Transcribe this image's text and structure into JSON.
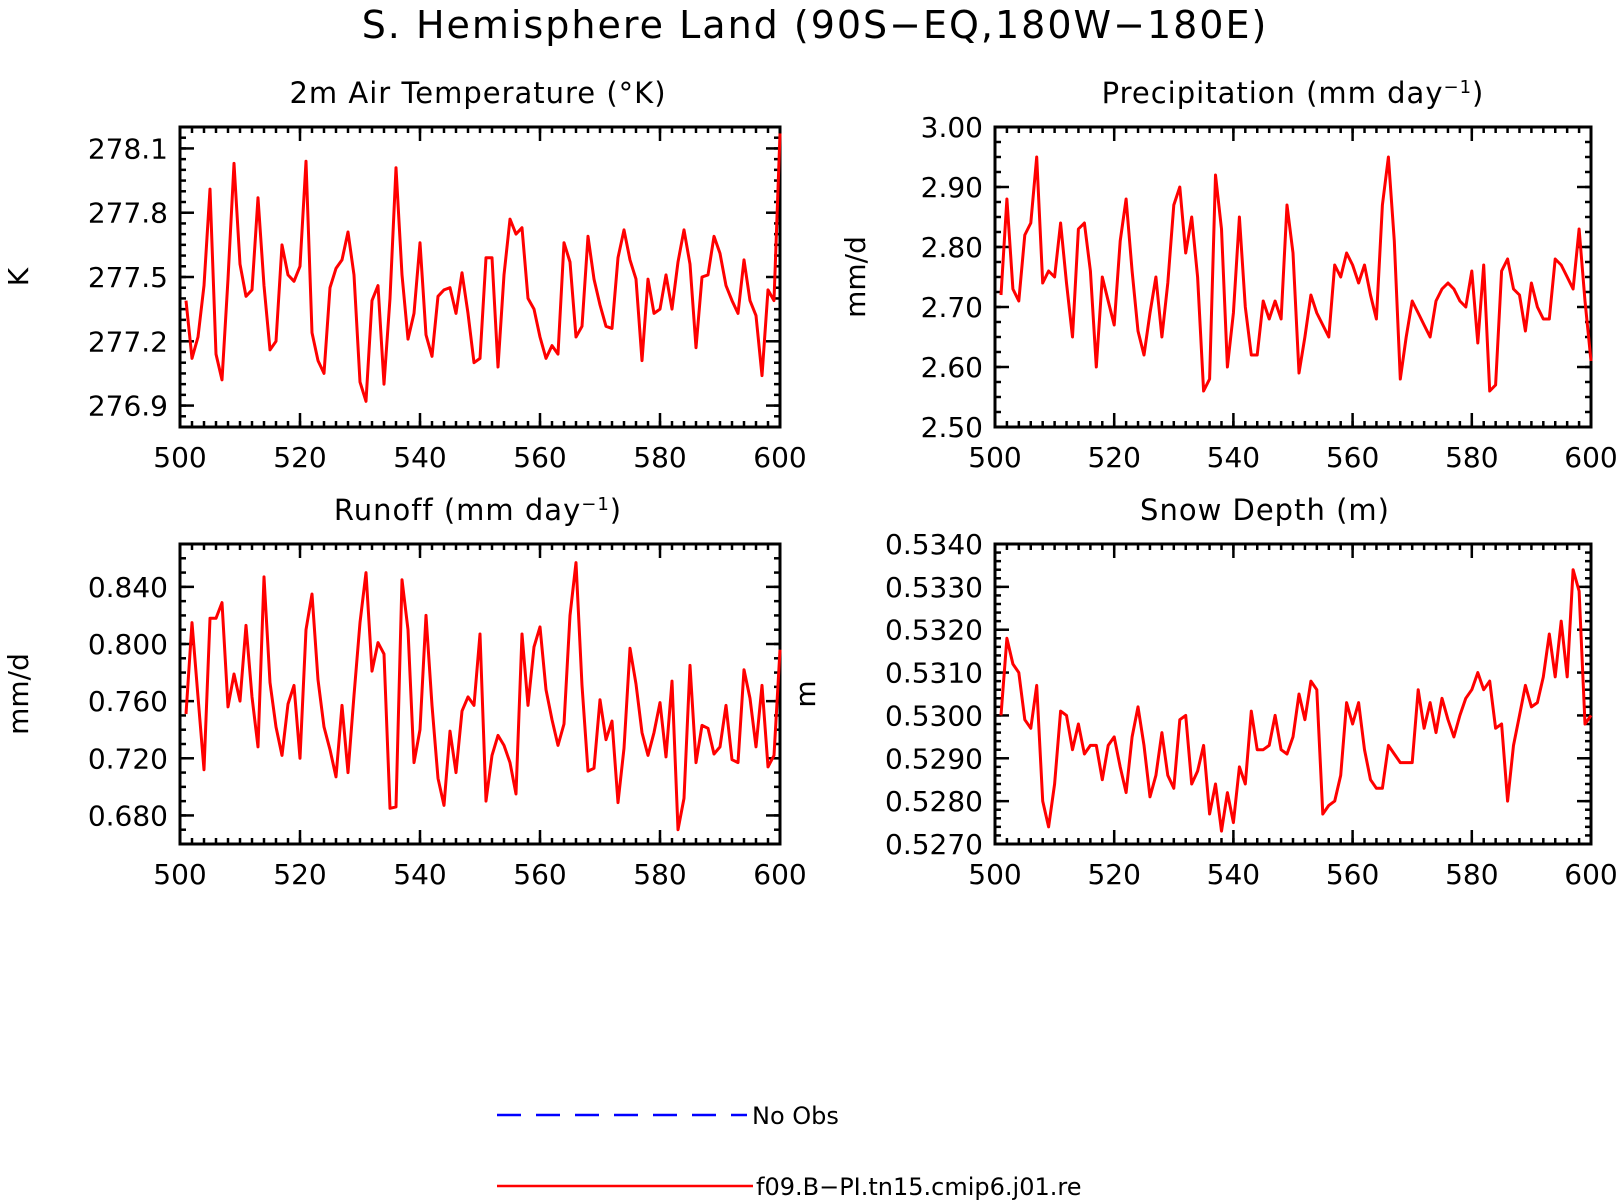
{
  "figure": {
    "title": "S. Hemisphere Land (90S−EQ,180W−180E)"
  },
  "legend": {
    "entries": [
      {
        "label": "No Obs",
        "color": "#0000ff",
        "dash": "dashed"
      },
      {
        "label": "f09.B−PI.tn15.cmip6.j01.re",
        "color": "#ff0000",
        "dash": "solid"
      }
    ]
  },
  "panels": [
    {
      "title_main": "2m Air Temperature (°K)",
      "title_sup": "",
      "title_tail": "",
      "ylabel": "K",
      "yticks": [
        "276.9",
        "277.2",
        "277.5",
        "277.8",
        "278.1"
      ],
      "xticks": [
        "500",
        "520",
        "540",
        "560",
        "580",
        "600"
      ]
    },
    {
      "title_main": "Precipitation (mm day",
      "title_sup": "−1",
      "title_tail": ")",
      "ylabel": "mm/d",
      "yticks": [
        "2.50",
        "2.60",
        "2.70",
        "2.80",
        "2.90",
        "3.00"
      ],
      "xticks": [
        "500",
        "520",
        "540",
        "560",
        "580",
        "600"
      ]
    },
    {
      "title_main": "Runoff (mm day",
      "title_sup": "−1",
      "title_tail": ")",
      "ylabel": "mm/d",
      "yticks": [
        "0.680",
        "0.720",
        "0.760",
        "0.800",
        "0.840"
      ],
      "xticks": [
        "500",
        "520",
        "540",
        "560",
        "580",
        "600"
      ]
    },
    {
      "title_main": "Snow Depth (m)",
      "title_sup": "",
      "title_tail": "",
      "ylabel": "m",
      "yticks": [
        "0.5270",
        "0.5280",
        "0.5290",
        "0.5300",
        "0.5310",
        "0.5320",
        "0.5330",
        "0.5340"
      ],
      "xticks": [
        "500",
        "520",
        "540",
        "560",
        "580",
        "600"
      ]
    }
  ],
  "chart_data": [
    {
      "type": "line",
      "title": "2m Air Temperature (°K)",
      "xlabel": "",
      "ylabel": "K",
      "xlim": [
        500,
        600
      ],
      "ylim": [
        276.8,
        278.2
      ],
      "series": [
        {
          "name": "f09.B−PI.tn15.cmip6.j01.re",
          "color": "#ff0000",
          "x": [
            501,
            502,
            503,
            504,
            505,
            506,
            507,
            508,
            509,
            510,
            511,
            512,
            513,
            514,
            515,
            516,
            517,
            518,
            519,
            520,
            521,
            522,
            523,
            524,
            525,
            526,
            527,
            528,
            529,
            530,
            531,
            532,
            533,
            534,
            535,
            536,
            537,
            538,
            539,
            540,
            541,
            542,
            543,
            544,
            545,
            546,
            547,
            548,
            549,
            550,
            551,
            552,
            553,
            554,
            555,
            556,
            557,
            558,
            559,
            560,
            561,
            562,
            563,
            564,
            565,
            566,
            567,
            568,
            569,
            570,
            571,
            572,
            573,
            574,
            575,
            576,
            577,
            578,
            579,
            580,
            581,
            582,
            583,
            584,
            585,
            586,
            587,
            588,
            589,
            590,
            591,
            592,
            593,
            594,
            595,
            596,
            597,
            598,
            599,
            600
          ],
          "y": [
            277.39,
            277.12,
            277.22,
            277.46,
            277.91,
            277.14,
            277.02,
            277.49,
            278.03,
            277.56,
            277.41,
            277.44,
            277.87,
            277.46,
            277.16,
            277.2,
            277.65,
            277.51,
            277.48,
            277.55,
            278.04,
            277.24,
            277.11,
            277.05,
            277.45,
            277.54,
            277.58,
            277.71,
            277.51,
            277.01,
            276.92,
            277.39,
            277.46,
            277.0,
            277.4,
            278.01,
            277.51,
            277.21,
            277.33,
            277.66,
            277.23,
            277.13,
            277.41,
            277.44,
            277.45,
            277.33,
            277.52,
            277.33,
            277.1,
            277.12,
            277.59,
            277.59,
            277.08,
            277.51,
            277.77,
            277.7,
            277.73,
            277.4,
            277.35,
            277.22,
            277.12,
            277.18,
            277.14,
            277.66,
            277.57,
            277.22,
            277.27,
            277.69,
            277.49,
            277.37,
            277.27,
            277.26,
            277.59,
            277.72,
            277.58,
            277.49,
            277.11,
            277.49,
            277.33,
            277.35,
            277.51,
            277.35,
            277.57,
            277.72,
            277.56,
            277.17,
            277.5,
            277.51,
            277.69,
            277.61,
            277.46,
            277.39,
            277.33,
            277.58,
            277.39,
            277.32,
            277.04,
            277.44,
            277.39,
            278.17
          ]
        }
      ]
    },
    {
      "type": "line",
      "title": "Precipitation (mm day−1)",
      "xlabel": "",
      "ylabel": "mm/d",
      "xlim": [
        500,
        600
      ],
      "ylim": [
        2.5,
        3.0
      ],
      "series": [
        {
          "name": "f09.B−PI.tn15.cmip6.j01.re",
          "color": "#ff0000",
          "x": [
            501,
            502,
            503,
            504,
            505,
            506,
            507,
            508,
            509,
            510,
            511,
            512,
            513,
            514,
            515,
            516,
            517,
            518,
            519,
            520,
            521,
            522,
            523,
            524,
            525,
            526,
            527,
            528,
            529,
            530,
            531,
            532,
            533,
            534,
            535,
            536,
            537,
            538,
            539,
            540,
            541,
            542,
            543,
            544,
            545,
            546,
            547,
            548,
            549,
            550,
            551,
            552,
            553,
            554,
            555,
            556,
            557,
            558,
            559,
            560,
            561,
            562,
            563,
            564,
            565,
            566,
            567,
            568,
            569,
            570,
            571,
            572,
            573,
            574,
            575,
            576,
            577,
            578,
            579,
            580,
            581,
            582,
            583,
            584,
            585,
            586,
            587,
            588,
            589,
            590,
            591,
            592,
            593,
            594,
            595,
            596,
            597,
            598,
            599,
            600
          ],
          "y": [
            2.72,
            2.88,
            2.73,
            2.71,
            2.82,
            2.84,
            2.95,
            2.74,
            2.76,
            2.75,
            2.84,
            2.74,
            2.65,
            2.83,
            2.84,
            2.76,
            2.6,
            2.75,
            2.71,
            2.67,
            2.81,
            2.88,
            2.76,
            2.66,
            2.62,
            2.69,
            2.75,
            2.65,
            2.74,
            2.87,
            2.9,
            2.79,
            2.85,
            2.75,
            2.56,
            2.58,
            2.92,
            2.83,
            2.6,
            2.69,
            2.85,
            2.7,
            2.62,
            2.62,
            2.71,
            2.68,
            2.71,
            2.68,
            2.87,
            2.79,
            2.59,
            2.65,
            2.72,
            2.69,
            2.67,
            2.65,
            2.77,
            2.75,
            2.79,
            2.77,
            2.74,
            2.77,
            2.72,
            2.68,
            2.87,
            2.95,
            2.81,
            2.58,
            2.65,
            2.71,
            2.69,
            2.67,
            2.65,
            2.71,
            2.73,
            2.74,
            2.73,
            2.71,
            2.7,
            2.76,
            2.64,
            2.77,
            2.56,
            2.57,
            2.76,
            2.78,
            2.73,
            2.72,
            2.66,
            2.74,
            2.7,
            2.68,
            2.68,
            2.78,
            2.77,
            2.75,
            2.73,
            2.83,
            2.71,
            2.61
          ]
        }
      ]
    },
    {
      "type": "line",
      "title": "Runoff (mm day−1)",
      "xlabel": "",
      "ylabel": "mm/d",
      "xlim": [
        500,
        600
      ],
      "ylim": [
        0.66,
        0.87
      ],
      "series": [
        {
          "name": "f09.B−PI.tn15.cmip6.j01.re",
          "color": "#ff0000",
          "x": [
            501,
            502,
            503,
            504,
            505,
            506,
            507,
            508,
            509,
            510,
            511,
            512,
            513,
            514,
            515,
            516,
            517,
            518,
            519,
            520,
            521,
            522,
            523,
            524,
            525,
            526,
            527,
            528,
            529,
            530,
            531,
            532,
            533,
            534,
            535,
            536,
            537,
            538,
            539,
            540,
            541,
            542,
            543,
            544,
            545,
            546,
            547,
            548,
            549,
            550,
            551,
            552,
            553,
            554,
            555,
            556,
            557,
            558,
            559,
            560,
            561,
            562,
            563,
            564,
            565,
            566,
            567,
            568,
            569,
            570,
            571,
            572,
            573,
            574,
            575,
            576,
            577,
            578,
            579,
            580,
            581,
            582,
            583,
            584,
            585,
            586,
            587,
            588,
            589,
            590,
            591,
            592,
            593,
            594,
            595,
            596,
            597,
            598,
            599,
            600
          ],
          "y": [
            0.751,
            0.815,
            0.763,
            0.712,
            0.818,
            0.818,
            0.829,
            0.756,
            0.779,
            0.76,
            0.813,
            0.763,
            0.728,
            0.847,
            0.773,
            0.742,
            0.722,
            0.758,
            0.771,
            0.72,
            0.81,
            0.835,
            0.775,
            0.742,
            0.726,
            0.707,
            0.757,
            0.71,
            0.764,
            0.815,
            0.85,
            0.781,
            0.801,
            0.793,
            0.685,
            0.686,
            0.845,
            0.81,
            0.717,
            0.74,
            0.82,
            0.757,
            0.706,
            0.687,
            0.739,
            0.71,
            0.753,
            0.763,
            0.757,
            0.807,
            0.69,
            0.722,
            0.736,
            0.729,
            0.717,
            0.695,
            0.807,
            0.757,
            0.798,
            0.812,
            0.768,
            0.747,
            0.729,
            0.744,
            0.82,
            0.857,
            0.771,
            0.711,
            0.713,
            0.761,
            0.733,
            0.746,
            0.689,
            0.727,
            0.797,
            0.772,
            0.738,
            0.722,
            0.738,
            0.759,
            0.721,
            0.774,
            0.67,
            0.692,
            0.785,
            0.717,
            0.743,
            0.741,
            0.723,
            0.728,
            0.757,
            0.719,
            0.717,
            0.782,
            0.762,
            0.728,
            0.771,
            0.714,
            0.722,
            0.796
          ]
        }
      ]
    },
    {
      "type": "line",
      "title": "Snow Depth (m)",
      "xlabel": "",
      "ylabel": "m",
      "xlim": [
        500,
        600
      ],
      "ylim": [
        0.527,
        0.534
      ],
      "series": [
        {
          "name": "f09.B−PI.tn15.cmip6.j01.re",
          "color": "#ff0000",
          "x": [
            501,
            502,
            503,
            504,
            505,
            506,
            507,
            508,
            509,
            510,
            511,
            512,
            513,
            514,
            515,
            516,
            517,
            518,
            519,
            520,
            521,
            522,
            523,
            524,
            525,
            526,
            527,
            528,
            529,
            530,
            531,
            532,
            533,
            534,
            535,
            536,
            537,
            538,
            539,
            540,
            541,
            542,
            543,
            544,
            545,
            546,
            547,
            548,
            549,
            550,
            551,
            552,
            553,
            554,
            555,
            556,
            557,
            558,
            559,
            560,
            561,
            562,
            563,
            564,
            565,
            566,
            567,
            568,
            569,
            570,
            571,
            572,
            573,
            574,
            575,
            576,
            577,
            578,
            579,
            580,
            581,
            582,
            583,
            584,
            585,
            586,
            587,
            588,
            589,
            590,
            591,
            592,
            593,
            594,
            595,
            596,
            597,
            598,
            599,
            600
          ],
          "y": [
            0.53,
            0.5318,
            0.5312,
            0.531,
            0.5299,
            0.5297,
            0.5307,
            0.528,
            0.5274,
            0.5284,
            0.5301,
            0.53,
            0.5292,
            0.5298,
            0.5291,
            0.5293,
            0.5293,
            0.5285,
            0.5293,
            0.5295,
            0.5288,
            0.5282,
            0.5295,
            0.5302,
            0.5293,
            0.5281,
            0.5286,
            0.5296,
            0.5286,
            0.5283,
            0.5299,
            0.53,
            0.5284,
            0.5287,
            0.5293,
            0.5277,
            0.5284,
            0.5273,
            0.5282,
            0.5275,
            0.5288,
            0.5284,
            0.5301,
            0.5292,
            0.5292,
            0.5293,
            0.53,
            0.5292,
            0.5291,
            0.5295,
            0.5305,
            0.5299,
            0.5308,
            0.5306,
            0.5277,
            0.5279,
            0.528,
            0.5286,
            0.5303,
            0.5298,
            0.5303,
            0.5292,
            0.5285,
            0.5283,
            0.5283,
            0.5293,
            0.5291,
            0.5289,
            0.5289,
            0.5289,
            0.5306,
            0.5297,
            0.5303,
            0.5296,
            0.5304,
            0.5299,
            0.5295,
            0.53,
            0.5304,
            0.5306,
            0.531,
            0.5306,
            0.5308,
            0.5297,
            0.5298,
            0.528,
            0.5293,
            0.53,
            0.5307,
            0.5302,
            0.5303,
            0.5309,
            0.5319,
            0.5309,
            0.5322,
            0.5309,
            0.5334,
            0.5329,
            0.5298,
            0.53
          ]
        }
      ]
    }
  ]
}
